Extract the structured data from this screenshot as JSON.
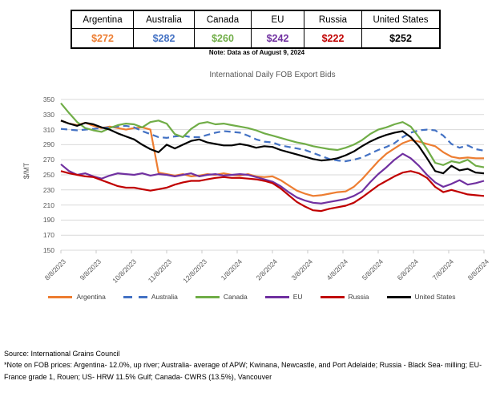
{
  "summary_table": {
    "columns": [
      {
        "label": "Argentina",
        "value": "$272",
        "color": "#ED7D31"
      },
      {
        "label": "Australia",
        "value": "$282",
        "color": "#4472C4"
      },
      {
        "label": "Canada",
        "value": "$260",
        "color": "#70AD47"
      },
      {
        "label": "EU",
        "value": "$242",
        "color": "#7030A0"
      },
      {
        "label": "Russia",
        "value": "$222",
        "color": "#C00000"
      },
      {
        "label": "United States",
        "value": "$252",
        "color": "#000000"
      }
    ],
    "note": "Note: Data as of August 9, 2024"
  },
  "chart_data": {
    "type": "line",
    "title": "International Daily FOB Export Bids",
    "ylabel": "$/MT",
    "ylim": [
      150,
      350
    ],
    "ytick_step": 20,
    "yticks": [
      350,
      330,
      310,
      290,
      270,
      250,
      230,
      210,
      190,
      170,
      150
    ],
    "x_labels": [
      "8/8/2023",
      "9/8/2023",
      "10/8/2023",
      "11/8/2023",
      "12/8/2023",
      "1/8/2024",
      "2/8/2024",
      "3/8/2024",
      "4/8/2024",
      "5/8/2024",
      "6/8/2024",
      "7/8/2024",
      "8/8/2024"
    ],
    "x_note": "53 approximately weekly samples evenly spanning 8/8/2023 to 8/8/2024",
    "grid": true,
    "legend_position": "bottom",
    "series": [
      {
        "name": "Argentina",
        "color": "#ED7D31",
        "dash": false,
        "values": [
          322,
          318,
          316,
          319,
          315,
          312,
          314,
          312,
          310,
          312,
          313,
          310,
          253,
          251,
          249,
          251,
          248,
          249,
          251,
          250,
          252,
          250,
          249,
          251,
          248,
          247,
          248,
          243,
          236,
          229,
          225,
          222,
          223,
          225,
          227,
          228,
          234,
          244,
          256,
          268,
          278,
          285,
          292,
          296,
          294,
          291,
          288,
          280,
          274,
          272,
          273,
          272,
          272
        ]
      },
      {
        "name": "Australia",
        "color": "#4472C4",
        "dash": true,
        "values": [
          311,
          310,
          309,
          310,
          311,
          312,
          313,
          314,
          315,
          313,
          308,
          304,
          300,
          299,
          301,
          302,
          300,
          300,
          303,
          306,
          308,
          307,
          306,
          302,
          297,
          294,
          293,
          289,
          287,
          285,
          283,
          279,
          275,
          271,
          269,
          268,
          270,
          273,
          278,
          283,
          287,
          292,
          300,
          306,
          309,
          310,
          309,
          302,
          291,
          286,
          289,
          284,
          282
        ]
      },
      {
        "name": "Canada",
        "color": "#70AD47",
        "dash": false,
        "values": [
          345,
          332,
          320,
          312,
          309,
          307,
          312,
          316,
          318,
          317,
          313,
          320,
          322,
          318,
          304,
          300,
          311,
          318,
          320,
          317,
          318,
          316,
          314,
          312,
          309,
          305,
          302,
          299,
          296,
          293,
          291,
          288,
          286,
          284,
          283,
          286,
          290,
          296,
          304,
          310,
          313,
          317,
          320,
          314,
          300,
          284,
          266,
          263,
          268,
          266,
          270,
          262,
          260
        ]
      },
      {
        "name": "EU",
        "color": "#7030A0",
        "dash": false,
        "values": [
          264,
          255,
          250,
          252,
          248,
          245,
          249,
          252,
          251,
          250,
          252,
          249,
          251,
          250,
          248,
          250,
          252,
          248,
          250,
          251,
          249,
          250,
          251,
          250,
          247,
          244,
          241,
          235,
          227,
          220,
          216,
          213,
          212,
          214,
          216,
          218,
          222,
          228,
          240,
          251,
          260,
          270,
          278,
          272,
          262,
          250,
          240,
          234,
          238,
          243,
          237,
          239,
          242
        ]
      },
      {
        "name": "Russia",
        "color": "#C00000",
        "dash": false,
        "values": [
          255,
          252,
          250,
          248,
          247,
          243,
          239,
          235,
          233,
          233,
          231,
          229,
          231,
          233,
          237,
          240,
          242,
          242,
          244,
          246,
          247,
          246,
          246,
          245,
          244,
          242,
          239,
          232,
          223,
          214,
          208,
          203,
          202,
          205,
          207,
          209,
          213,
          220,
          228,
          236,
          242,
          248,
          253,
          255,
          252,
          246,
          234,
          227,
          230,
          227,
          224,
          223,
          222
        ]
      },
      {
        "name": "United States",
        "color": "#000000",
        "dash": false,
        "values": [
          322,
          318,
          315,
          319,
          317,
          313,
          310,
          305,
          301,
          297,
          290,
          284,
          280,
          290,
          285,
          290,
          295,
          297,
          293,
          291,
          289,
          289,
          291,
          289,
          286,
          288,
          287,
          283,
          280,
          277,
          274,
          271,
          269,
          270,
          272,
          276,
          281,
          288,
          294,
          299,
          303,
          306,
          308,
          300,
          288,
          272,
          255,
          252,
          262,
          256,
          258,
          253,
          252
        ]
      }
    ]
  },
  "footer": {
    "source": "Source: International Grains Council",
    "note": "*Note on FOB prices: Argentina- 12.0%, up river; Australia- average of APW; Kwinana, Newcastle, and Port Adelaide; Russia - Black Sea- milling; EU- France grade 1, Rouen; US- HRW 11.5% Gulf; Canada- CWRS (13.5%), Vancouver"
  }
}
